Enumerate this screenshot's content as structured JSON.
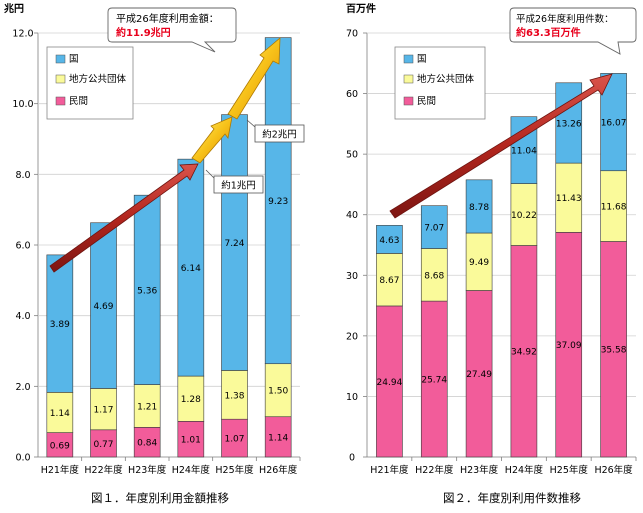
{
  "charts": [
    {
      "type": "bar",
      "stacked": true,
      "unit": "兆円",
      "ylim": [
        0,
        12
      ],
      "yticks": [
        "0.0",
        "2.0",
        "4.0",
        "6.0",
        "8.0",
        "10.0",
        "12.0"
      ],
      "categories": [
        "H21年度",
        "H22年度",
        "H23年度",
        "H24年度",
        "H25年度",
        "H26年度"
      ],
      "series": [
        {
          "name": "民間",
          "color": "#f25c9a",
          "values": [
            0.69,
            0.77,
            0.84,
            1.01,
            1.07,
            1.14
          ],
          "labels": [
            "0.69",
            "0.77",
            "0.84",
            "1.01",
            "1.07",
            "1.14"
          ]
        },
        {
          "name": "地方公共団体",
          "color": "#fafa9a",
          "values": [
            1.14,
            1.17,
            1.21,
            1.28,
            1.38,
            1.5
          ],
          "labels": [
            "1.14",
            "1.17",
            "1.21",
            "1.28",
            "1.38",
            "1.50"
          ]
        },
        {
          "name": "国",
          "color": "#57b6e8",
          "values": [
            3.89,
            4.69,
            5.36,
            6.14,
            7.24,
            9.23
          ],
          "labels": [
            "3.89",
            "4.69",
            "5.36",
            "6.14",
            "7.24",
            "9.23"
          ]
        }
      ],
      "callout": {
        "line1": "平成26年度利用金額：",
        "line2": "約11.9兆円"
      },
      "annotations": [
        "約1兆円",
        "約2兆円"
      ],
      "caption": "図１．年度別利用金額推移"
    },
    {
      "type": "bar",
      "stacked": true,
      "unit": "百万件",
      "ylim": [
        0,
        70
      ],
      "yticks": [
        "0",
        "10",
        "20",
        "30",
        "40",
        "50",
        "60",
        "70"
      ],
      "categories": [
        "H21年度",
        "H22年度",
        "H23年度",
        "H24年度",
        "H25年度",
        "H26年度"
      ],
      "series": [
        {
          "name": "民間",
          "color": "#f25c9a",
          "values": [
            24.94,
            25.74,
            27.49,
            34.92,
            37.09,
            35.58
          ],
          "labels": [
            "24.94",
            "25.74",
            "27.49",
            "34.92",
            "37.09",
            "35.58"
          ]
        },
        {
          "name": "地方公共団体",
          "color": "#fafa9a",
          "values": [
            8.67,
            8.68,
            9.49,
            10.22,
            11.43,
            11.68
          ],
          "labels": [
            "8.67",
            "8.68",
            "9.49",
            "10.22",
            "11.43",
            "11.68"
          ]
        },
        {
          "name": "国",
          "color": "#57b6e8",
          "values": [
            4.63,
            7.07,
            8.78,
            11.04,
            13.26,
            16.07
          ],
          "labels": [
            "4.63",
            "7.07",
            "8.78",
            "11.04",
            "13.26",
            "16.07"
          ]
        }
      ],
      "callout": {
        "line1": "平成26年度利用件数：",
        "line2": "約63.3百万件"
      },
      "annotations": [],
      "caption": "図２．年度別利用件数推移"
    }
  ]
}
